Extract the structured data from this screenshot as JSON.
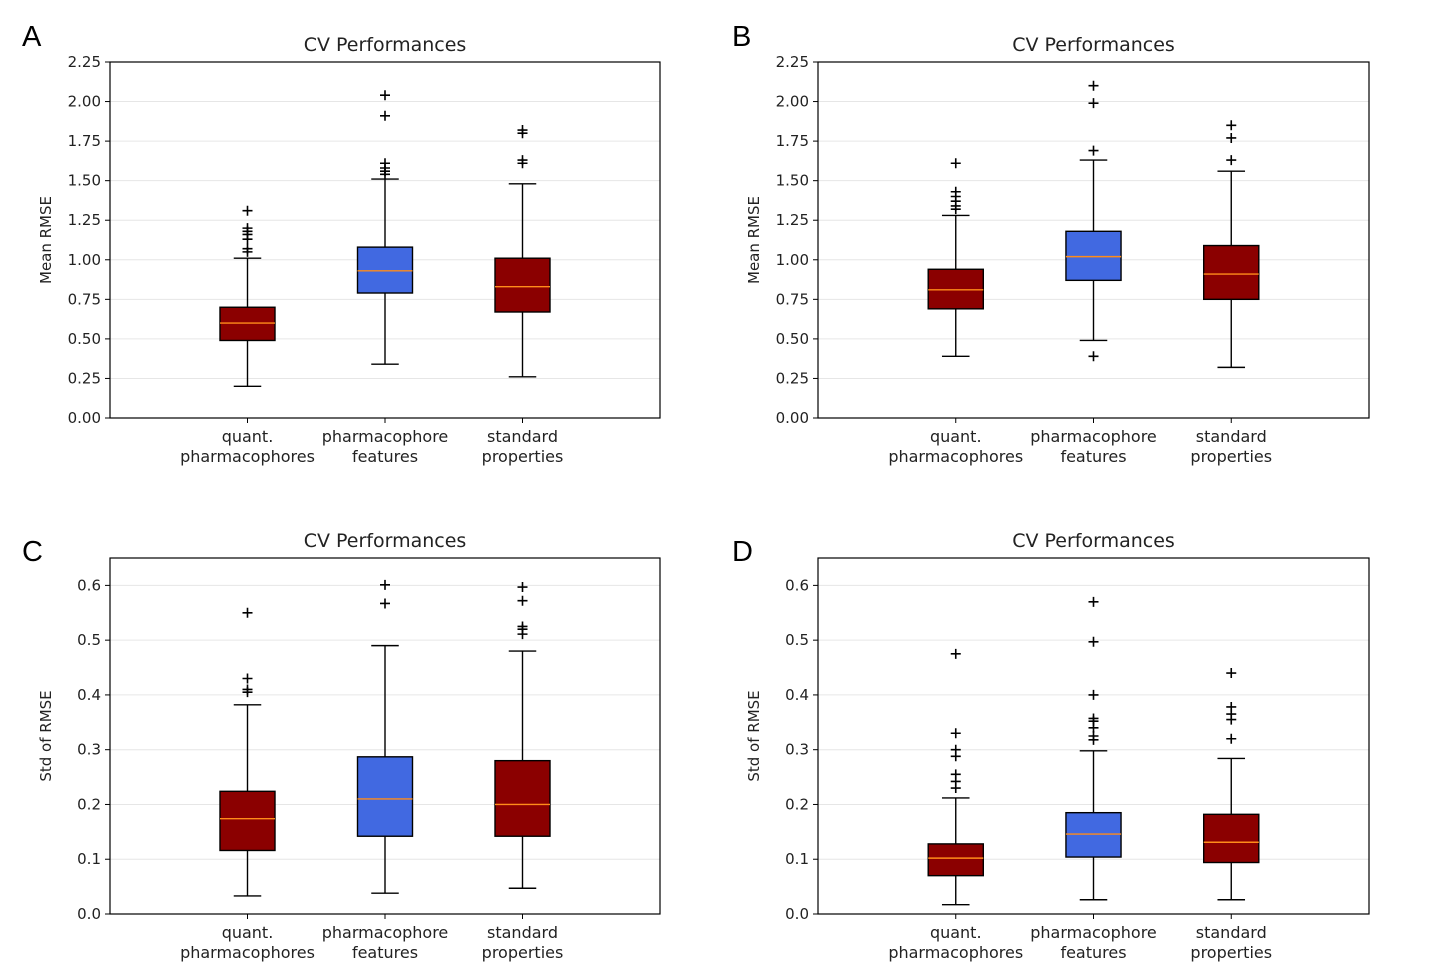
{
  "colors": {
    "red_box": "#8b0000",
    "blue_box": "#4169e1",
    "median": "#ff8c1a",
    "grid": "#e6e6e6",
    "axis": "#000000"
  },
  "chart_data": [
    {
      "panel": "A",
      "type": "box",
      "title": "CV Performances",
      "ylabel": "Mean RMSE",
      "ylim": [
        0,
        2.25
      ],
      "yticks": [
        "0.00",
        "0.25",
        "0.50",
        "0.75",
        "1.00",
        "1.25",
        "1.50",
        "1.75",
        "2.00",
        "2.25"
      ],
      "grid": "horizontal",
      "categories": [
        [
          "quant.",
          "pharmacophores"
        ],
        [
          "pharmacophore",
          "features"
        ],
        [
          "standard",
          "properties"
        ]
      ],
      "boxes": [
        {
          "color": "red_box",
          "whislo": 0.2,
          "q1": 0.49,
          "med": 0.6,
          "q3": 0.7,
          "whishi": 1.01,
          "fliers": [
            1.05,
            1.07,
            1.13,
            1.16,
            1.18,
            1.2,
            1.31
          ]
        },
        {
          "color": "blue_box",
          "whislo": 0.34,
          "q1": 0.79,
          "med": 0.93,
          "q3": 1.08,
          "whishi": 1.51,
          "fliers": [
            1.54,
            1.56,
            1.58,
            1.61,
            1.91,
            2.04
          ]
        },
        {
          "color": "red_box",
          "whislo": 0.26,
          "q1": 0.67,
          "med": 0.83,
          "q3": 1.01,
          "whishi": 1.48,
          "fliers": [
            1.61,
            1.63,
            1.8,
            1.82
          ]
        }
      ]
    },
    {
      "panel": "B",
      "type": "box",
      "title": "CV Performances",
      "ylabel": "Mean RMSE",
      "ylim": [
        0,
        2.25
      ],
      "yticks": [
        "0.00",
        "0.25",
        "0.50",
        "0.75",
        "1.00",
        "1.25",
        "1.50",
        "1.75",
        "2.00",
        "2.25"
      ],
      "grid": "horizontal",
      "categories": [
        [
          "quant.",
          "pharmacophores"
        ],
        [
          "pharmacophore",
          "features"
        ],
        [
          "standard",
          "properties"
        ]
      ],
      "boxes": [
        {
          "color": "red_box",
          "whislo": 0.39,
          "q1": 0.69,
          "med": 0.81,
          "q3": 0.94,
          "whishi": 1.28,
          "fliers": [
            1.32,
            1.34,
            1.37,
            1.4,
            1.43,
            1.61
          ]
        },
        {
          "color": "blue_box",
          "whislo": 0.49,
          "q1": 0.87,
          "med": 1.02,
          "q3": 1.18,
          "whishi": 1.63,
          "fliers": [
            0.39,
            1.69,
            1.99,
            2.1
          ]
        },
        {
          "color": "red_box",
          "whislo": 0.32,
          "q1": 0.75,
          "med": 0.91,
          "q3": 1.09,
          "whishi": 1.56,
          "fliers": [
            1.63,
            1.77,
            1.85
          ]
        }
      ]
    },
    {
      "panel": "C",
      "type": "box",
      "title": "CV Performances",
      "ylabel": "Std of RMSE",
      "ylim": [
        0,
        0.65
      ],
      "yticks": [
        "0.0",
        "0.1",
        "0.2",
        "0.3",
        "0.4",
        "0.5",
        "0.6"
      ],
      "grid": "horizontal",
      "categories": [
        [
          "quant.",
          "pharmacophores"
        ],
        [
          "pharmacophore",
          "features"
        ],
        [
          "standard",
          "properties"
        ]
      ],
      "boxes": [
        {
          "color": "red_box",
          "whislo": 0.033,
          "q1": 0.116,
          "med": 0.174,
          "q3": 0.224,
          "whishi": 0.382,
          "fliers": [
            0.405,
            0.41,
            0.43,
            0.55
          ]
        },
        {
          "color": "blue_box",
          "whislo": 0.038,
          "q1": 0.142,
          "med": 0.21,
          "q3": 0.287,
          "whishi": 0.49,
          "fliers": [
            0.567,
            0.601
          ]
        },
        {
          "color": "red_box",
          "whislo": 0.047,
          "q1": 0.142,
          "med": 0.2,
          "q3": 0.28,
          "whishi": 0.48,
          "fliers": [
            0.511,
            0.52,
            0.525,
            0.572,
            0.597
          ]
        }
      ]
    },
    {
      "panel": "D",
      "type": "box",
      "title": "CV Performances",
      "ylabel": "Std of RMSE",
      "ylim": [
        0,
        0.65
      ],
      "yticks": [
        "0.0",
        "0.1",
        "0.2",
        "0.3",
        "0.4",
        "0.5",
        "0.6"
      ],
      "grid": "horizontal",
      "categories": [
        [
          "quant.",
          "pharmacophores"
        ],
        [
          "pharmacophore",
          "features"
        ],
        [
          "standard",
          "properties"
        ]
      ],
      "boxes": [
        {
          "color": "red_box",
          "whislo": 0.017,
          "q1": 0.07,
          "med": 0.102,
          "q3": 0.128,
          "whishi": 0.212,
          "fliers": [
            0.23,
            0.242,
            0.255,
            0.288,
            0.3,
            0.33,
            0.475
          ]
        },
        {
          "color": "blue_box",
          "whislo": 0.026,
          "q1": 0.104,
          "med": 0.146,
          "q3": 0.185,
          "whishi": 0.298,
          "fliers": [
            0.318,
            0.325,
            0.34,
            0.352,
            0.357,
            0.4,
            0.497,
            0.57
          ]
        },
        {
          "color": "red_box",
          "whislo": 0.026,
          "q1": 0.094,
          "med": 0.131,
          "q3": 0.182,
          "whishi": 0.284,
          "fliers": [
            0.32,
            0.355,
            0.365,
            0.378,
            0.44
          ]
        }
      ]
    }
  ]
}
